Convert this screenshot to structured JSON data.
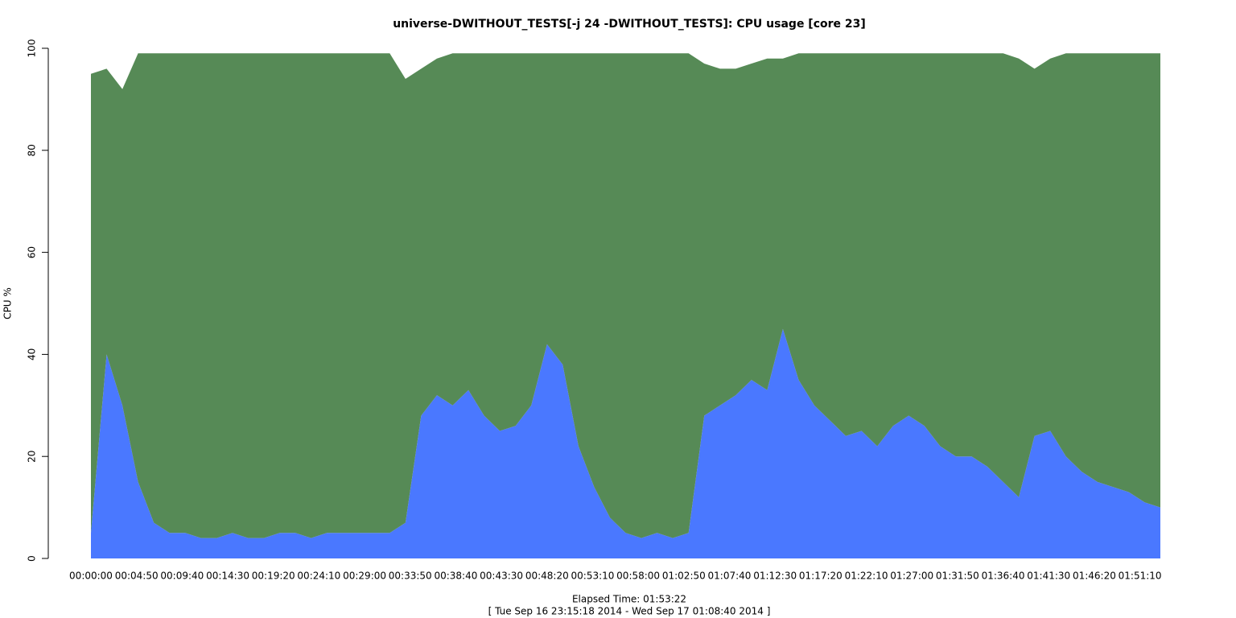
{
  "chart_data": {
    "type": "stacked-area",
    "title": "universe-DWITHOUT_TESTS[-j 24  -DWITHOUT_TESTS]: CPU usage [core 23]",
    "ylabel": "CPU %",
    "xlabel": "Elapsed Time: 01:53:22",
    "subtitle": "[ Tue Sep 16 23:15:18 2014 - Wed Sep 17 01:08:40 2014 ]",
    "x": [
      0,
      100,
      200,
      300,
      400,
      500,
      600,
      700,
      800,
      900,
      1000,
      1100,
      1200,
      1300,
      1400,
      1500,
      1600,
      1700,
      1800,
      1900,
      2000,
      2100,
      2200,
      2300,
      2400,
      2500,
      2600,
      2700,
      2800,
      2900,
      3000,
      3100,
      3200,
      3300,
      3400,
      3500,
      3600,
      3700,
      3800,
      3900,
      4000,
      4100,
      4200,
      4300,
      4400,
      4500,
      4600,
      4700,
      4800,
      4900,
      5000,
      5100,
      5200,
      5300,
      5400,
      5500,
      5600,
      5700,
      5800,
      5900,
      6000,
      6100,
      6200,
      6300,
      6400,
      6500,
      6600,
      6700,
      6800
    ],
    "series": [
      {
        "color": "#4a78ff",
        "values": [
          5,
          40,
          30,
          15,
          7,
          5,
          5,
          4,
          4,
          5,
          4,
          4,
          5,
          5,
          4,
          5,
          5,
          5,
          5,
          5,
          7,
          28,
          32,
          30,
          33,
          28,
          25,
          26,
          30,
          42,
          38,
          22,
          14,
          8,
          5,
          4,
          5,
          4,
          5,
          28,
          30,
          32,
          35,
          33,
          45,
          35,
          30,
          27,
          24,
          25,
          22,
          26,
          28,
          26,
          22,
          20,
          20,
          18,
          15,
          12,
          24,
          25,
          20,
          17,
          15,
          14,
          13,
          11,
          10
        ]
      },
      {
        "color": "#568a56",
        "values": [
          90,
          56,
          62,
          84,
          92,
          94,
          94,
          95,
          95,
          94,
          95,
          95,
          94,
          94,
          95,
          94,
          94,
          94,
          94,
          94,
          87,
          68,
          66,
          69,
          66,
          71,
          74,
          73,
          69,
          57,
          61,
          77,
          85,
          91,
          94,
          95,
          94,
          95,
          94,
          69,
          66,
          64,
          62,
          65,
          53,
          64,
          69,
          72,
          75,
          74,
          77,
          73,
          71,
          73,
          77,
          79,
          79,
          81,
          84,
          86,
          72,
          73,
          79,
          82,
          84,
          85,
          86,
          88,
          89
        ]
      }
    ],
    "xlim": [
      0,
      6800
    ],
    "xticks": [
      {
        "value": 0,
        "label": "00:00:00"
      },
      {
        "value": 290,
        "label": "00:04:50"
      },
      {
        "value": 580,
        "label": "00:09:40"
      },
      {
        "value": 870,
        "label": "00:14:30"
      },
      {
        "value": 1160,
        "label": "00:19:20"
      },
      {
        "value": 1450,
        "label": "00:24:10"
      },
      {
        "value": 1740,
        "label": "00:29:00"
      },
      {
        "value": 2030,
        "label": "00:33:50"
      },
      {
        "value": 2320,
        "label": "00:38:40"
      },
      {
        "value": 2610,
        "label": "00:43:30"
      },
      {
        "value": 2900,
        "label": "00:48:20"
      },
      {
        "value": 3190,
        "label": "00:53:10"
      },
      {
        "value": 3480,
        "label": "00:58:00"
      },
      {
        "value": 3770,
        "label": "01:02:50"
      },
      {
        "value": 4060,
        "label": "01:07:40"
      },
      {
        "value": 4350,
        "label": "01:12:30"
      },
      {
        "value": 4640,
        "label": "01:17:20"
      },
      {
        "value": 4930,
        "label": "01:22:10"
      },
      {
        "value": 5220,
        "label": "01:27:00"
      },
      {
        "value": 5510,
        "label": "01:31:50"
      },
      {
        "value": 5800,
        "label": "01:36:40"
      },
      {
        "value": 6090,
        "label": "01:41:30"
      },
      {
        "value": 6380,
        "label": "01:46:20"
      },
      {
        "value": 6670,
        "label": "01:51:10"
      }
    ],
    "ylim": [
      0,
      100
    ],
    "yticks": [
      0,
      20,
      40,
      60,
      80,
      100
    ]
  }
}
